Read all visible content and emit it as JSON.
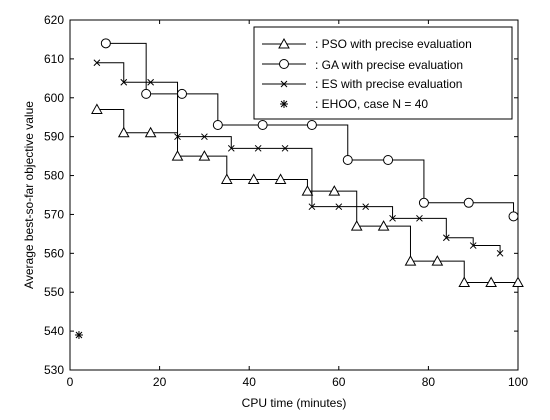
{
  "chart_data": {
    "type": "line",
    "xlabel": "CPU time (minutes)",
    "ylabel": "Average best-so-far objective value",
    "xlim": [
      0,
      100
    ],
    "ylim": [
      530,
      620
    ],
    "xticks": [
      0,
      20,
      40,
      60,
      80,
      100
    ],
    "yticks": [
      530,
      540,
      550,
      560,
      570,
      580,
      590,
      600,
      610,
      620
    ],
    "grid": false,
    "legend_position": "top-right",
    "series": [
      {
        "name": ": PSO with precise evaluation",
        "marker": "triangle",
        "step": true,
        "color": "#000000",
        "points": [
          [
            6,
            597
          ],
          [
            12,
            591
          ],
          [
            18,
            591
          ],
          [
            24,
            585
          ],
          [
            30,
            585
          ],
          [
            35,
            579
          ],
          [
            41,
            579
          ],
          [
            47,
            579
          ],
          [
            53,
            576
          ],
          [
            59,
            576
          ],
          [
            64,
            567
          ],
          [
            70,
            567
          ],
          [
            76,
            558
          ],
          [
            82,
            558
          ],
          [
            88,
            552.5
          ],
          [
            94,
            552.5
          ],
          [
            100,
            552.5
          ]
        ]
      },
      {
        "name": ": GA with precise evaluation",
        "marker": "circle",
        "step": true,
        "color": "#000000",
        "points": [
          [
            8,
            614
          ],
          [
            17,
            601
          ],
          [
            25,
            601
          ],
          [
            33,
            593
          ],
          [
            43,
            593
          ],
          [
            54,
            593
          ],
          [
            62,
            584
          ],
          [
            71,
            584
          ],
          [
            79,
            573
          ],
          [
            89,
            573
          ],
          [
            99,
            569.5
          ]
        ]
      },
      {
        "name": ": ES with precise evaluation",
        "marker": "x",
        "step": true,
        "color": "#000000",
        "points": [
          [
            6,
            609
          ],
          [
            12,
            604
          ],
          [
            18,
            604
          ],
          [
            24,
            590
          ],
          [
            30,
            590
          ],
          [
            36,
            587
          ],
          [
            42,
            587
          ],
          [
            48,
            587
          ],
          [
            54,
            572
          ],
          [
            60,
            572
          ],
          [
            66,
            572
          ],
          [
            72,
            569
          ],
          [
            78,
            569
          ],
          [
            84,
            564
          ],
          [
            90,
            562
          ],
          [
            96,
            560
          ]
        ]
      },
      {
        "name": ": EHOO, case N = 40",
        "marker": "asterisk",
        "step": false,
        "color": "#000000",
        "points": [
          [
            2,
            539
          ]
        ]
      }
    ]
  }
}
